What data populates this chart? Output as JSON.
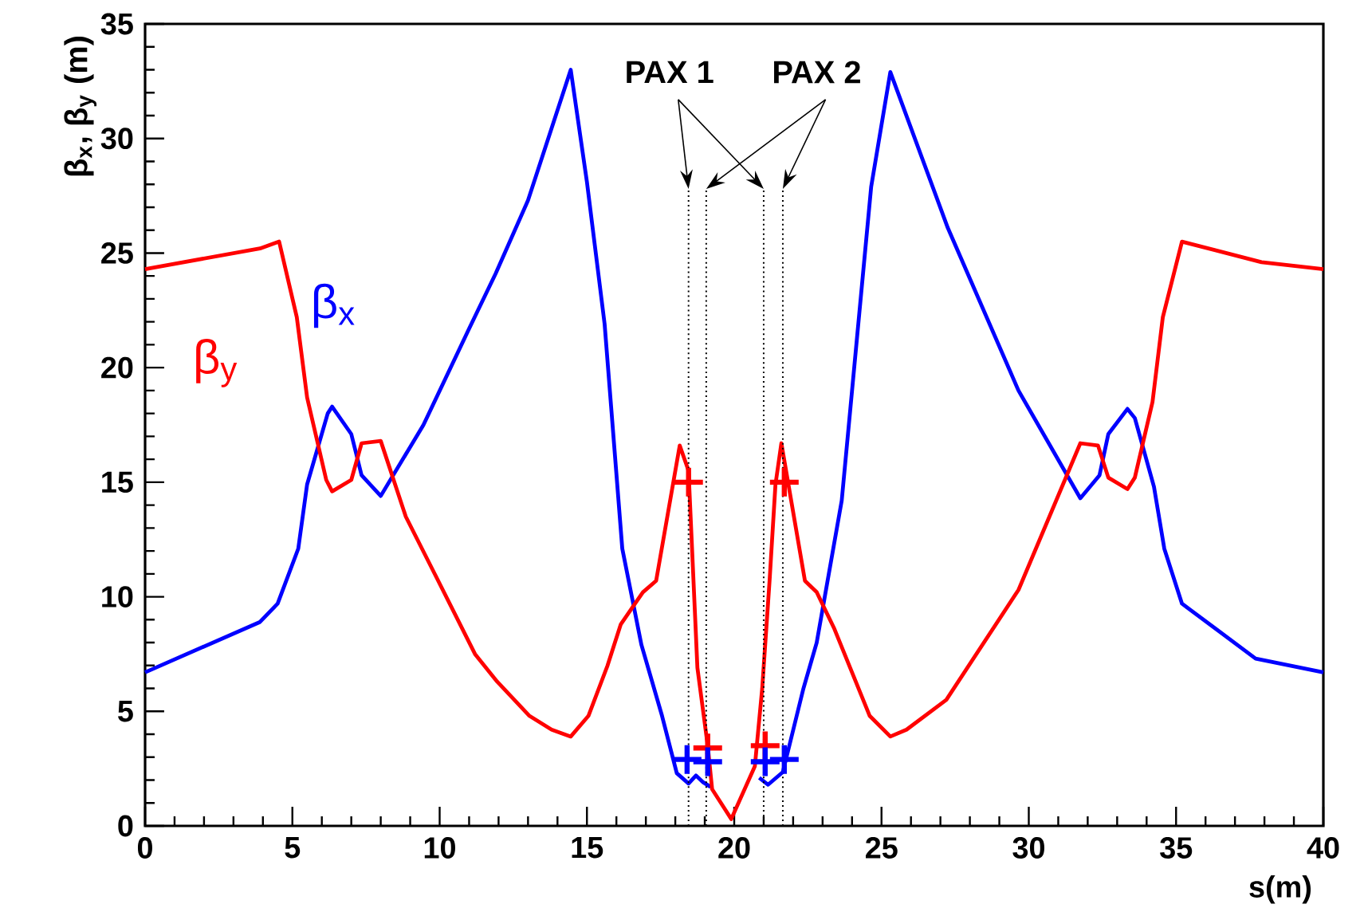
{
  "chart_data": {
    "type": "line",
    "xlabel": "s(m)",
    "ylabel": "β$_{x}$, β$_{y}$ (m)",
    "xlim": [
      0,
      40
    ],
    "ylim": [
      0,
      35
    ],
    "xticks": [
      0,
      5,
      10,
      15,
      20,
      25,
      30,
      35,
      40
    ],
    "yticks": [
      0,
      5,
      10,
      15,
      20,
      25,
      30,
      35
    ],
    "grid": false,
    "series": [
      {
        "name": "β$_{x}$",
        "color": "#0000ff",
        "x": [
          0,
          3.9,
          4.5,
          5.2,
          5.5,
          6.2,
          6.35,
          7.0,
          7.35,
          8.0,
          9.45,
          11.0,
          11.9,
          13.0,
          14.45,
          15.0,
          15.6,
          16.2,
          16.85,
          17.55,
          18.05,
          18.45,
          18.7,
          18.95,
          19.2,
          19.8,
          20.85,
          21.15,
          21.65,
          22.35,
          22.8,
          23.65,
          24.65,
          25.3,
          27.25,
          29.65,
          31.75,
          32.4,
          32.7,
          33.35,
          33.6,
          34.25,
          34.6,
          35.2,
          37.7,
          40
        ],
        "values": [
          6.7,
          8.9,
          9.7,
          12.1,
          14.9,
          18.0,
          18.3,
          17.1,
          15.3,
          14.4,
          17.5,
          21.7,
          24.1,
          27.3,
          33.0,
          28.1,
          21.9,
          12.1,
          7.9,
          4.8,
          2.3,
          1.85,
          2.2,
          1.9,
          1.7,
          null,
          2.1,
          1.8,
          2.35,
          6.0,
          8.0,
          14.2,
          27.9,
          32.9,
          26.1,
          19.0,
          14.3,
          15.3,
          17.1,
          18.2,
          17.8,
          14.8,
          12.1,
          9.7,
          7.3,
          6.7
        ]
      },
      {
        "name": "β$_{y}$",
        "color": "#ff0000",
        "x": [
          0,
          3.9,
          4.55,
          5.15,
          5.5,
          6.15,
          6.35,
          7.0,
          7.35,
          8.0,
          8.85,
          9.95,
          11.2,
          11.95,
          13.05,
          13.8,
          14.45,
          15.05,
          15.7,
          16.15,
          16.9,
          17.35,
          18.15,
          18.45,
          18.75,
          19.1,
          19.25,
          19.9,
          20.7,
          20.95,
          21.2,
          21.4,
          21.6,
          22.4,
          22.8,
          23.4,
          24.6,
          25.3,
          25.85,
          27.2,
          29.65,
          31.75,
          32.35,
          32.7,
          33.35,
          33.6,
          34.2,
          34.55,
          35.2,
          37.9,
          40
        ],
        "values": [
          24.3,
          25.2,
          25.5,
          22.2,
          18.7,
          15.1,
          14.6,
          15.1,
          16.7,
          16.8,
          13.5,
          10.7,
          7.5,
          6.3,
          4.8,
          4.2,
          3.9,
          4.8,
          7.0,
          8.8,
          10.2,
          10.7,
          16.6,
          15.5,
          6.9,
          3.5,
          1.6,
          0.3,
          2.6,
          6.0,
          10.7,
          14.9,
          16.7,
          10.7,
          10.2,
          8.6,
          4.8,
          3.9,
          4.2,
          5.5,
          10.3,
          16.7,
          16.6,
          15.2,
          14.7,
          15.2,
          18.5,
          22.2,
          25.5,
          24.6,
          24.3
        ]
      },
      {
        "color": "#ff0000",
        "type": "scatter",
        "marker": "cross",
        "x": [
          18.45,
          19.1,
          21.05,
          21.7
        ],
        "values": [
          15.0,
          3.4,
          3.5,
          15.0
        ]
      },
      {
        "color": "#0000ff",
        "type": "scatter",
        "marker": "cross",
        "x": [
          18.4,
          19.1,
          21.05,
          21.7
        ],
        "values": [
          2.9,
          2.8,
          2.8,
          2.9
        ]
      }
    ],
    "ref_lines": [
      {
        "axis": "x",
        "value": 18.45,
        "line_style": "dotted",
        "color": "#000000"
      },
      {
        "axis": "x",
        "value": 19.05,
        "line_style": "dotted",
        "color": "#000000"
      },
      {
        "axis": "x",
        "value": 21.0,
        "line_style": "dotted",
        "color": "#000000"
      },
      {
        "axis": "x",
        "value": 21.65,
        "line_style": "dotted",
        "color": "#000000"
      }
    ],
    "annotations": [
      {
        "text": "PAX 1",
        "x": 18.45,
        "y": 27.8
      },
      {
        "text": "PAX 2",
        "x": 21.65,
        "y": 27.8
      }
    ]
  }
}
